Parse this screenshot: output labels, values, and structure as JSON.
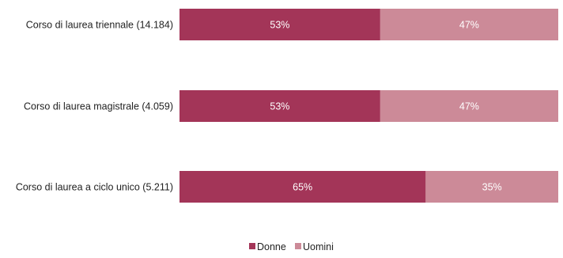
{
  "chart_data": {
    "type": "bar",
    "orientation": "horizontal",
    "stacked": true,
    "percent": true,
    "categories": [
      "Corso di laurea triennale (14.184)",
      "Corso di laurea magistrale (4.059)",
      "Corso di laurea a ciclo unico (5.211)"
    ],
    "series": [
      {
        "name": "Donne",
        "values": [
          53,
          53,
          65
        ],
        "labels": [
          "53%",
          "53%",
          "65%"
        ],
        "color": "#a33558"
      },
      {
        "name": "Uomini",
        "values": [
          47,
          47,
          35
        ],
        "labels": [
          "47%",
          "47%",
          "35%"
        ],
        "color": "#cc8a98"
      }
    ],
    "xlim": [
      0,
      100
    ],
    "grid": false,
    "legend": "bottom-center",
    "label_color": "#ffffff",
    "text_color": "#222222"
  }
}
